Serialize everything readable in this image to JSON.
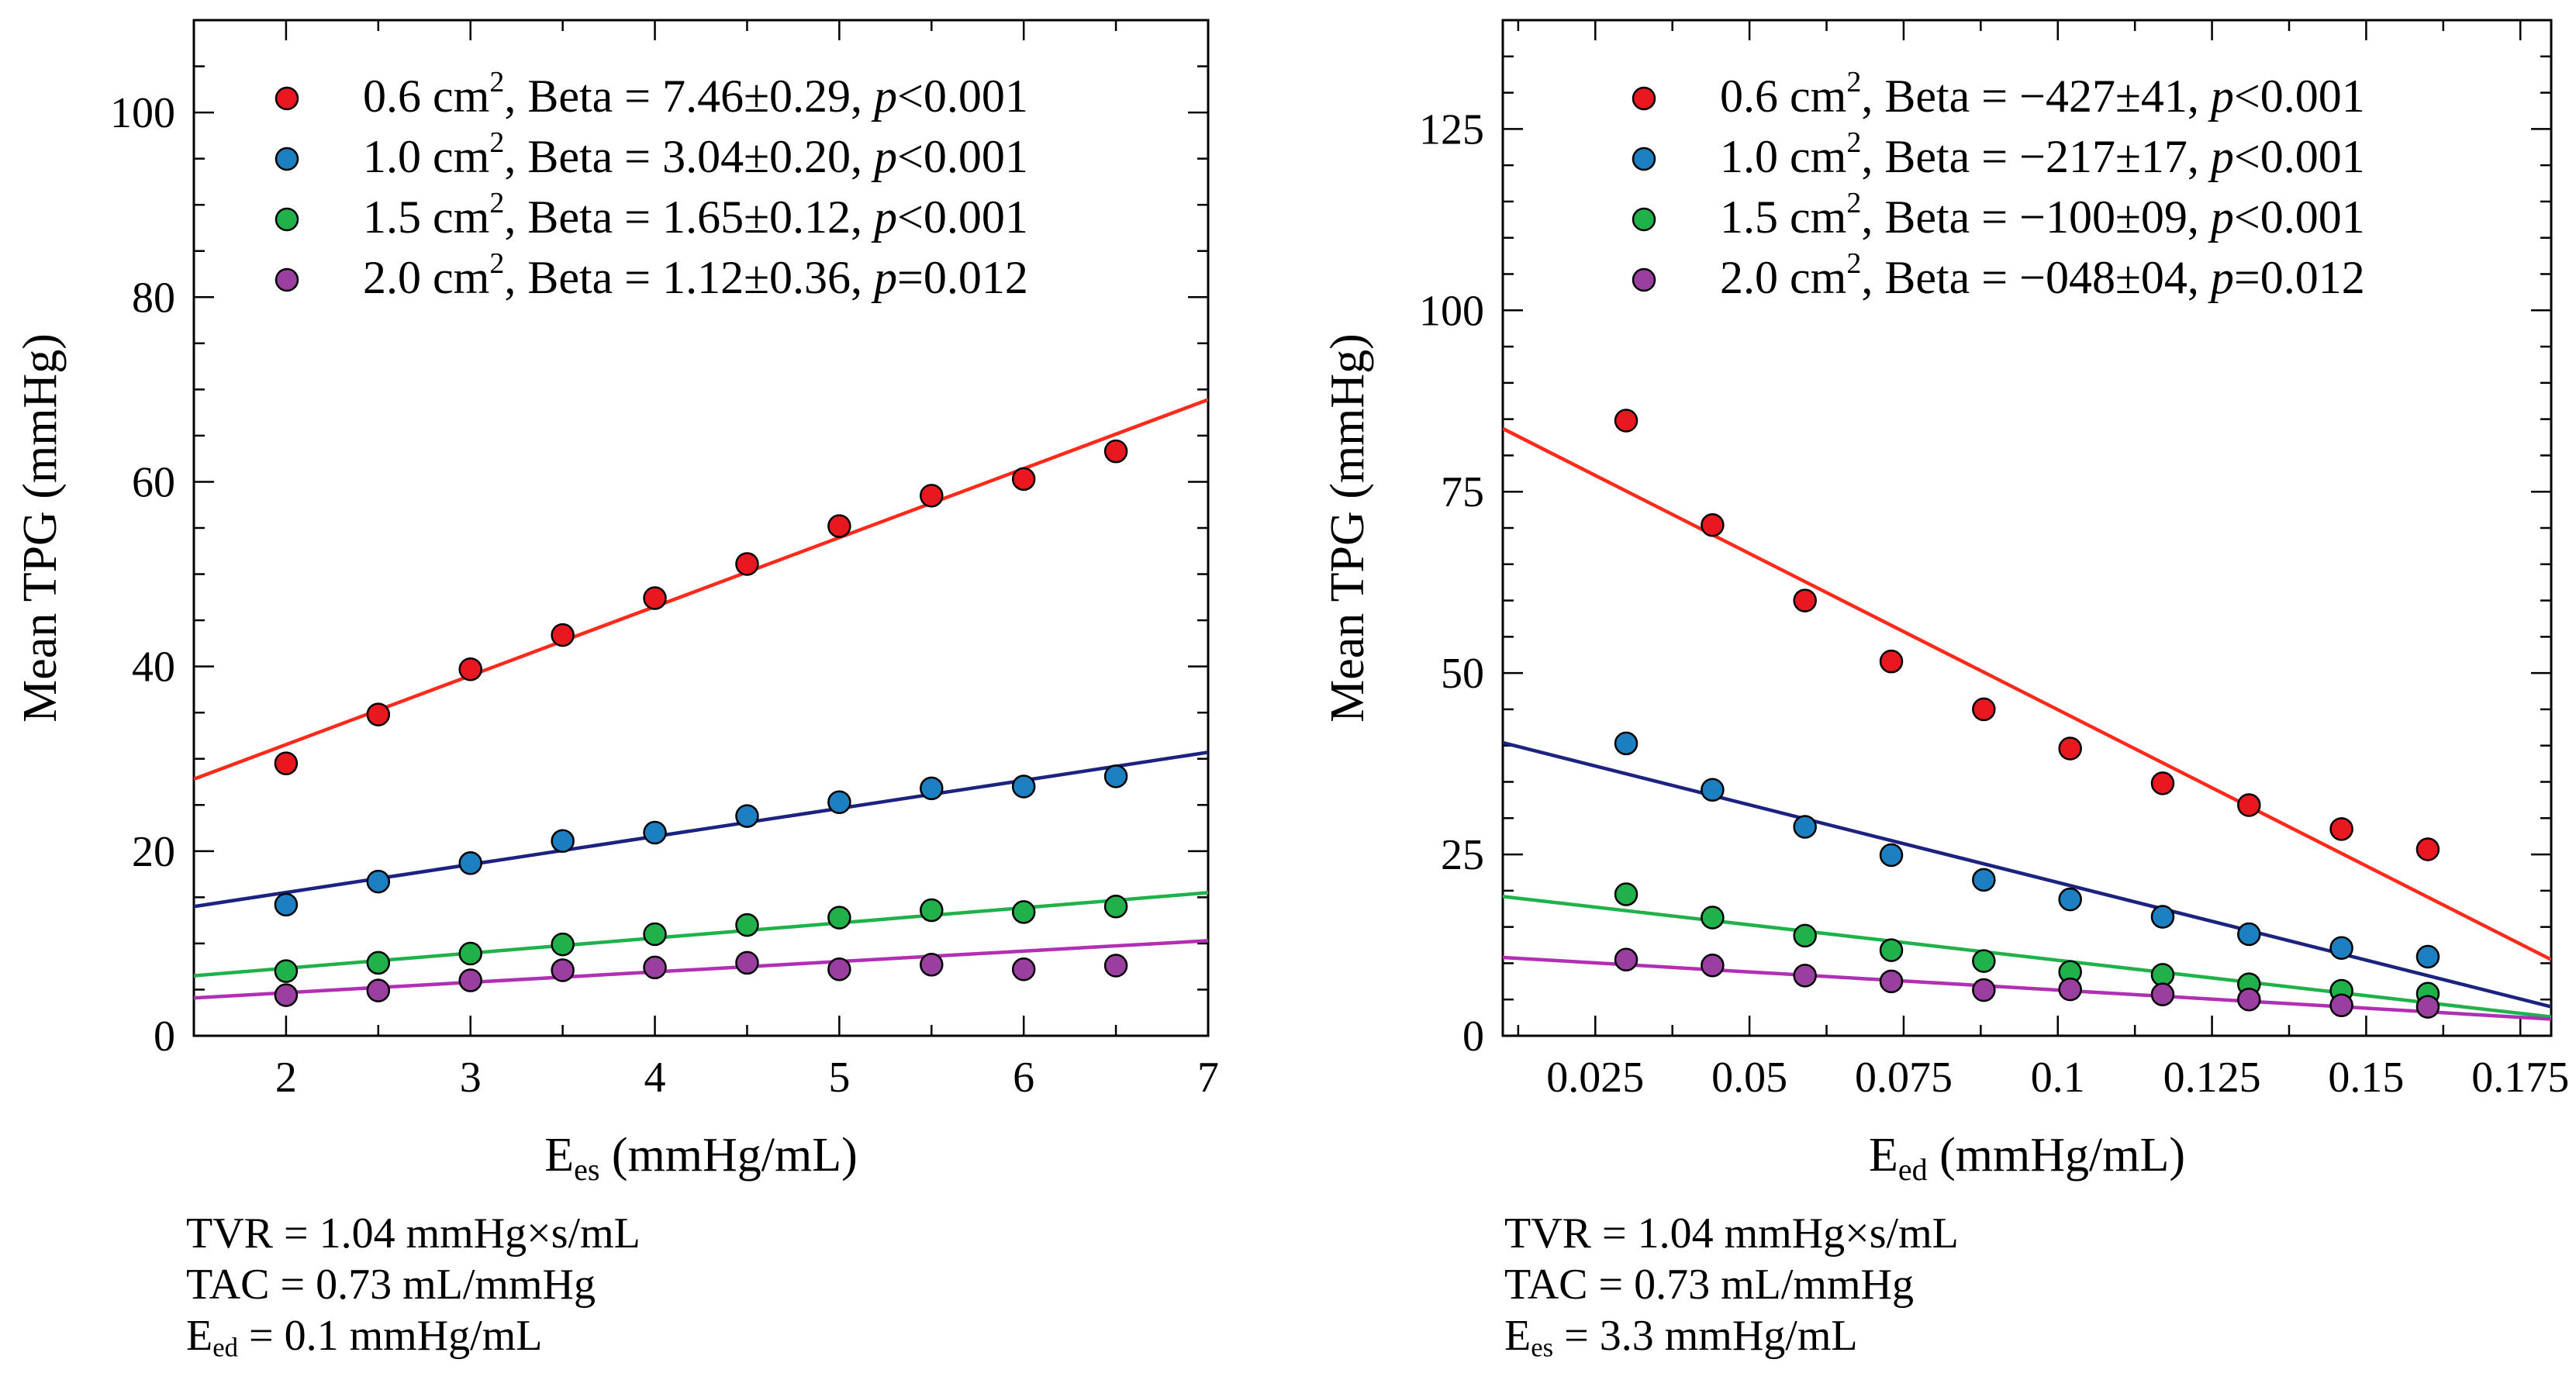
{
  "chart_data": [
    {
      "type": "scatter",
      "title": "",
      "xlabel": {
        "main": "E",
        "sub": "es",
        "rest": " (mmHg/mL)"
      },
      "ylabel": "Mean TPG (mmHg)",
      "xlim": [
        1.5,
        7
      ],
      "ylim": [
        0,
        110
      ],
      "xticks": [
        2,
        3,
        4,
        5,
        6,
        7
      ],
      "xtick_labels": [
        "2",
        "3",
        "4",
        "5",
        "6",
        "7"
      ],
      "yticks": [
        0,
        20,
        40,
        60,
        80,
        100
      ],
      "ytick_labels": [
        "0",
        "20",
        "40",
        "60",
        "80",
        "100"
      ],
      "x_minor_step": 0.5,
      "y_minor_step": 5,
      "grid": false,
      "legend_position": "top-left",
      "series": [
        {
          "name": "0.6 cm2",
          "color": "#e8181e",
          "line_color": "#ff2a1a",
          "legend": {
            "area": "0.6 cm",
            "sup": "2",
            "beta": ", Beta = 7.46±0.29, ",
            "p": "p",
            "pval": "<0.001"
          },
          "x": [
            2,
            2.5,
            3,
            3.5,
            4,
            4.5,
            5,
            5.5,
            6,
            6.5
          ],
          "y": [
            29.5,
            34.8,
            39.7,
            43.4,
            47.4,
            51.1,
            55.2,
            58.5,
            60.3,
            63.3
          ],
          "fit": {
            "x": [
              1.5,
              7
            ],
            "y": [
              27.8,
              68.9
            ]
          }
        },
        {
          "name": "1.0 cm2",
          "color": "#1b7fc1",
          "line_color": "#1c2280",
          "legend": {
            "area": "1.0 cm",
            "sup": "2",
            "beta": ", Beta = 3.04±0.20, ",
            "p": "p",
            "pval": "<0.001"
          },
          "x": [
            2,
            2.5,
            3,
            3.5,
            4,
            4.5,
            5,
            5.5,
            6,
            6.5
          ],
          "y": [
            14.2,
            16.7,
            18.7,
            21.1,
            22.0,
            23.8,
            25.3,
            26.8,
            27.0,
            28.1
          ],
          "fit": {
            "x": [
              1.5,
              7
            ],
            "y": [
              14.0,
              30.7
            ]
          }
        },
        {
          "name": "1.5 cm2",
          "color": "#21b14a",
          "line_color": "#21b14a",
          "legend": {
            "area": "1.5 cm",
            "sup": "2",
            "beta": ", Beta = 1.65±0.12, ",
            "p": "p",
            "pval": "<0.001"
          },
          "x": [
            2,
            2.5,
            3,
            3.5,
            4,
            4.5,
            5,
            5.5,
            6,
            6.5
          ],
          "y": [
            7.0,
            7.9,
            8.9,
            9.9,
            11.0,
            12.0,
            12.8,
            13.6,
            13.4,
            14.0
          ],
          "fit": {
            "x": [
              1.5,
              7
            ],
            "y": [
              6.5,
              15.5
            ]
          }
        },
        {
          "name": "2.0 cm2",
          "color": "#9a3ea0",
          "line_color": "#b02fb3",
          "legend": {
            "area": "2.0 cm",
            "sup": "2",
            "beta": ", Beta = 1.12±0.36, ",
            "p": "p",
            "pval": "=0.012"
          },
          "x": [
            2,
            2.5,
            3,
            3.5,
            4,
            4.5,
            5,
            5.5,
            6,
            6.5
          ],
          "y": [
            4.4,
            4.9,
            6.0,
            7.1,
            7.4,
            7.9,
            7.2,
            7.7,
            7.2,
            7.6
          ],
          "fit": {
            "x": [
              1.5,
              7
            ],
            "y": [
              4.1,
              10.3
            ]
          }
        }
      ],
      "footnotes": [
        {
          "main": "TVR = 1.04 mmHg×s/mL",
          "sub": "",
          "rest": ""
        },
        {
          "main": "TAC = 0.73 mL/mmHg",
          "sub": "",
          "rest": ""
        },
        {
          "main": "E",
          "sub": "ed",
          "rest": " = 0.1 mmHg/mL"
        }
      ]
    },
    {
      "type": "scatter",
      "title": "",
      "xlabel": {
        "main": "E",
        "sub": "ed",
        "rest": " (mmHg/mL)"
      },
      "ylabel": "Mean TPG (mmHg)",
      "xlim": [
        0.01,
        0.18
      ],
      "ylim": [
        0,
        140
      ],
      "xticks": [
        0.025,
        0.05,
        0.075,
        0.1,
        0.125,
        0.15,
        0.175
      ],
      "xtick_labels": [
        "0.025",
        "0.05",
        "0.075",
        "0.1",
        "0.125",
        "0.15",
        "0.175"
      ],
      "yticks": [
        0,
        25,
        50,
        75,
        100,
        125
      ],
      "ytick_labels": [
        "0",
        "25",
        "50",
        "75",
        "100",
        "125"
      ],
      "x_minor_step": 0.0125,
      "y_minor_step": 5,
      "grid": false,
      "legend_position": "top-left",
      "series": [
        {
          "name": "0.6 cm2",
          "color": "#e8181e",
          "line_color": "#ff2a1a",
          "legend": {
            "area": "0.6 cm",
            "sup": "2",
            "beta": ", Beta = −427±41, ",
            "p": "p",
            "pval": "<0.001"
          },
          "x": [
            0.03,
            0.044,
            0.059,
            0.073,
            0.088,
            0.102,
            0.117,
            0.131,
            0.146,
            0.16
          ],
          "y": [
            84.8,
            70.4,
            60.0,
            51.6,
            45.0,
            39.6,
            34.8,
            31.8,
            28.5,
            25.7
          ],
          "fit": {
            "x": [
              0.01,
              0.18
            ],
            "y": [
              83.7,
              10.5
            ]
          }
        },
        {
          "name": "1.0 cm2",
          "color": "#1b7fc1",
          "line_color": "#1c2280",
          "legend": {
            "area": "1.0 cm",
            "sup": "2",
            "beta": ", Beta = −217±17, ",
            "p": "p",
            "pval": "<0.001"
          },
          "x": [
            0.03,
            0.044,
            0.059,
            0.073,
            0.088,
            0.102,
            0.117,
            0.131,
            0.146,
            0.16
          ],
          "y": [
            40.3,
            33.9,
            28.8,
            24.9,
            21.5,
            18.8,
            16.4,
            14.0,
            12.1,
            10.9
          ],
          "fit": {
            "x": [
              0.01,
              0.18
            ],
            "y": [
              40.4,
              4.0
            ]
          }
        },
        {
          "name": "1.5 cm2",
          "color": "#21b14a",
          "line_color": "#21b14a",
          "legend": {
            "area": "1.5 cm",
            "sup": "2",
            "beta": ", Beta = −100±09, ",
            "p": "p",
            "pval": "<0.001"
          },
          "x": [
            0.03,
            0.044,
            0.059,
            0.073,
            0.088,
            0.102,
            0.117,
            0.131,
            0.146,
            0.16
          ],
          "y": [
            19.5,
            16.3,
            13.8,
            11.8,
            10.3,
            8.8,
            8.4,
            7.1,
            6.2,
            5.8
          ],
          "fit": {
            "x": [
              0.01,
              0.18
            ],
            "y": [
              19.2,
              2.6
            ]
          }
        },
        {
          "name": "2.0 cm2",
          "color": "#9a3ea0",
          "line_color": "#b02fb3",
          "legend": {
            "area": "2.0 cm",
            "sup": "2",
            "beta": ", Beta = −048±04, ",
            "p": "p",
            "pval": "=0.012"
          },
          "x": [
            0.03,
            0.044,
            0.059,
            0.073,
            0.088,
            0.102,
            0.117,
            0.131,
            0.146,
            0.16
          ],
          "y": [
            10.5,
            9.7,
            8.3,
            7.5,
            6.3,
            6.4,
            5.7,
            5.0,
            4.2,
            4.0
          ],
          "fit": {
            "x": [
              0.01,
              0.18
            ],
            "y": [
              10.8,
              2.3
            ]
          }
        }
      ],
      "footnotes": [
        {
          "main": "TVR = 1.04 mmHg×s/mL",
          "sub": "",
          "rest": ""
        },
        {
          "main": "TAC = 0.73 mL/mmHg",
          "sub": "",
          "rest": ""
        },
        {
          "main": "E",
          "sub": "es",
          "rest": " = 3.3 mmHg/mL"
        }
      ]
    }
  ]
}
